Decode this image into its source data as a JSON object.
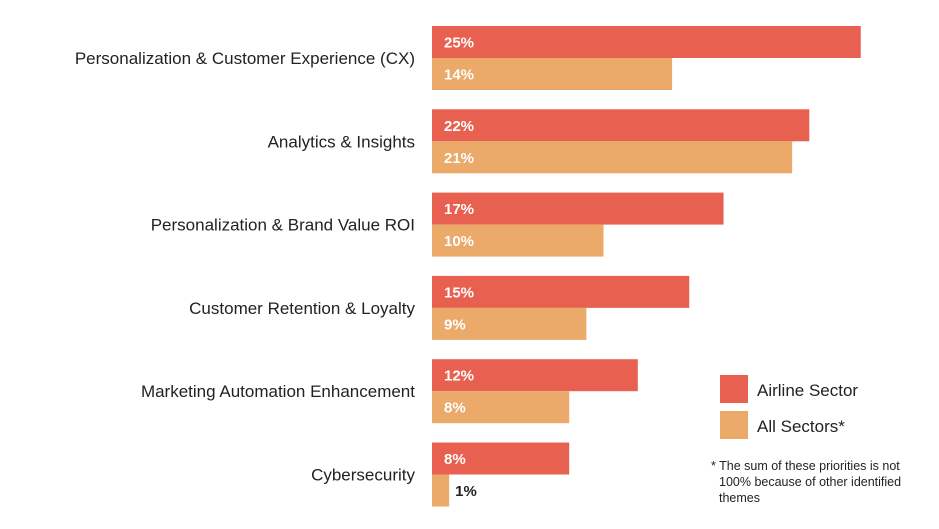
{
  "chart_data": {
    "type": "bar",
    "orientation": "horizontal",
    "categories": [
      "Personalization & Customer Experience (CX)",
      "Analytics & Insights",
      "Personalization & Brand Value ROI",
      "Customer Retention & Loyalty",
      "Marketing Automation Enhancement",
      "Cybersecurity"
    ],
    "series": [
      {
        "name": "Airline Sector",
        "values": [
          25,
          22,
          17,
          15,
          12,
          8
        ],
        "color": "#E8604F"
      },
      {
        "name": "All Sectors*",
        "values": [
          14,
          21,
          10,
          9,
          8,
          1
        ],
        "color": "#EBA96A"
      }
    ],
    "value_suffix": "%",
    "xlim": [
      0,
      25
    ],
    "legend_position": "bottom-right",
    "footnote": [
      "* The sum of these priorities is not",
      "100% because of other identified",
      "themes"
    ],
    "label_colors": {
      "inside": "#ffffff",
      "outside": "#222222"
    }
  }
}
